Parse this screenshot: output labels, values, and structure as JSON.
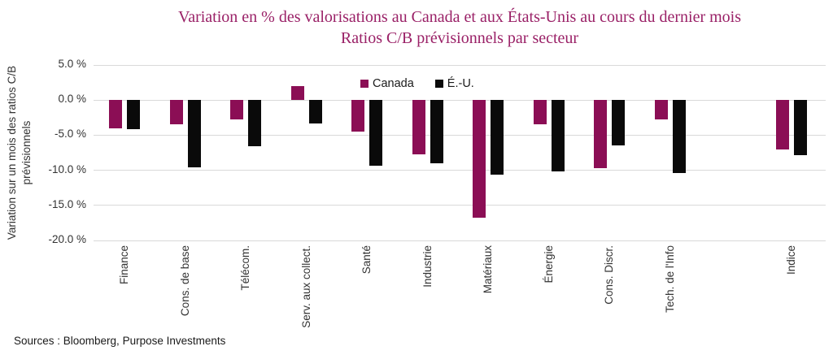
{
  "footer": {
    "sources": "Sources : Bloomberg, Purpose Investments"
  },
  "colors": {
    "title": "#9A2167",
    "canada": "#8B0E55",
    "us": "#0a0a0a",
    "gridline": "#d9d9d9"
  },
  "chart_data": {
    "type": "bar",
    "title": "Variation en % des valorisations au Canada et aux États-Unis au cours du dernier mois",
    "subtitle": "Ratios C/B prévisionnels par secteur",
    "ylabel": "Variation sur un mois des ratios C/B prévisionnels",
    "xlabel": "",
    "ylim": [
      -20,
      5
    ],
    "grid": true,
    "legend_position": "top-center",
    "y_ticks": [
      {
        "value": 5,
        "label": "5.0 %"
      },
      {
        "value": 0,
        "label": "0.0 %"
      },
      {
        "value": -5,
        "label": "-5.0 %"
      },
      {
        "value": -10,
        "label": "-10.0 %"
      },
      {
        "value": -15,
        "label": "-15.0 %"
      },
      {
        "value": -20,
        "label": "-20.0 %"
      }
    ],
    "categories": [
      "Finance",
      "Cons. de base",
      "Télécom.",
      "Serv. aux collect.",
      "Santé",
      "Industrie",
      "Matériaux",
      "Énergie",
      "Cons. Discr.",
      "Tech. de l'Info",
      "",
      "Indice"
    ],
    "series": [
      {
        "name": "Canada",
        "color": "#8B0E55",
        "values": [
          -4.0,
          -3.4,
          -2.7,
          2.0,
          -4.5,
          -7.7,
          -16.8,
          -3.4,
          -9.7,
          -2.7,
          null,
          -7.0
        ]
      },
      {
        "name": "É.-U.",
        "color": "#0a0a0a",
        "values": [
          -4.1,
          -9.6,
          -6.6,
          -3.3,
          -9.4,
          -9.0,
          -10.6,
          -10.2,
          -6.5,
          -10.4,
          null,
          -7.8
        ]
      }
    ]
  }
}
